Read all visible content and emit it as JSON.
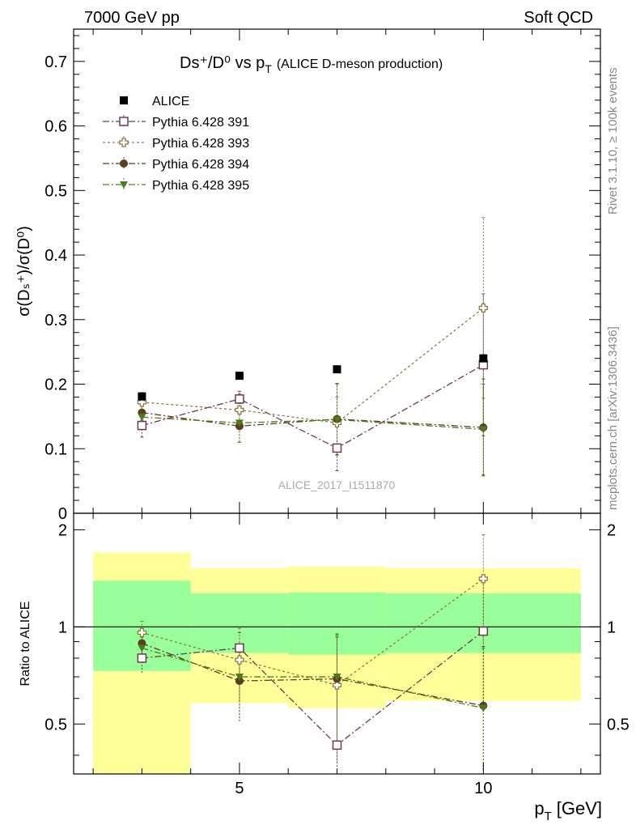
{
  "header": {
    "left": "7000 GeV pp",
    "right": "Soft QCD"
  },
  "side": {
    "rivet": "Rivet 3.1.10, ≥ 100k events",
    "mcplots": "mcplots.cern.ch [arXiv:1306.3436]"
  },
  "chart_data": [
    {
      "type": "scatter",
      "title_main": "Ds⁺/D⁰ vs p",
      "title_sub": "T",
      "title_note": "(ALICE D-meson production)",
      "ylabel": "σ(Dₛ⁺)/σ(D⁰)",
      "watermark": "ALICE_2017_I1511870",
      "xlim": [
        1.6,
        12.4
      ],
      "ylim": [
        0,
        0.75
      ],
      "yticks": [
        0,
        0.1,
        0.2,
        0.3,
        0.4,
        0.5,
        0.6,
        0.7
      ],
      "ytick_labels": [
        "0",
        "0.1",
        "0.2",
        "0.3",
        "0.4",
        "0.5",
        "0.6",
        "0.7"
      ],
      "legend_position": "top-left",
      "x": [
        3,
        5,
        7,
        10
      ],
      "series": [
        {
          "name": "ALICE",
          "color": "#000000",
          "marker": "filled-square",
          "line": "none",
          "values": [
            0.181,
            0.213,
            0.223,
            0.24
          ],
          "err": [
            0.005,
            0.005,
            0.005,
            0.005
          ]
        },
        {
          "name": "Pythia 6.428 391",
          "color": "#6b3a52",
          "marker": "open-square",
          "line": "dashdot",
          "values": [
            0.136,
            0.177,
            0.101,
            0.23
          ],
          "err": [
            0.018,
            0.012,
            0.035,
            0.11
          ]
        },
        {
          "name": "Pythia 6.428 393",
          "color": "#8a7a45",
          "marker": "open-cross",
          "line": "dotted",
          "values": [
            0.172,
            0.16,
            0.14,
            0.318
          ],
          "err": [
            0.015,
            0.025,
            0.04,
            0.14
          ]
        },
        {
          "name": "Pythia 6.428 394",
          "color": "#5a3e22",
          "marker": "filled-circle",
          "line": "dashdot",
          "values": [
            0.156,
            0.135,
            0.146,
            0.133
          ],
          "err": [
            0.012,
            0.025,
            0.055,
            0.075
          ]
        },
        {
          "name": "Pythia 6.428 395",
          "color": "#4f7a1c",
          "marker": "filled-triangle",
          "line": "dashdot",
          "values": [
            0.149,
            0.14,
            0.145,
            0.13
          ],
          "err": [
            0.012,
            0.03,
            0.055,
            0.07
          ]
        }
      ]
    },
    {
      "type": "scatter",
      "ylabel": "Ratio to ALICE",
      "xlabel_main": "p",
      "xlabel_sub": "T",
      "xlabel_unit": "[GeV]",
      "xlim": [
        1.6,
        12.4
      ],
      "ylim": [
        0.35,
        2.25
      ],
      "yticks": [
        0.5,
        1,
        2
      ],
      "ytick_labels": [
        "0.5",
        "1",
        "2"
      ],
      "xticks": [
        5,
        10
      ],
      "xtick_labels": [
        "5",
        "10"
      ],
      "bands": [
        {
          "x0": 2,
          "x1": 4,
          "green": [
            0.73,
            1.39
          ],
          "yellow": [
            0.35,
            1.7
          ]
        },
        {
          "x0": 4,
          "x1": 6,
          "green": [
            0.83,
            1.27
          ],
          "yellow": [
            0.58,
            1.52
          ]
        },
        {
          "x0": 6,
          "x1": 8,
          "green": [
            0.82,
            1.28
          ],
          "yellow": [
            0.56,
            1.54
          ]
        },
        {
          "x0": 8,
          "x1": 12,
          "green": [
            0.83,
            1.27
          ],
          "yellow": [
            0.59,
            1.52
          ]
        }
      ],
      "x": [
        3,
        5,
        7,
        10
      ],
      "series": [
        {
          "name": "Pythia 6.428 391",
          "values": [
            0.8,
            0.86,
            0.43,
            0.97
          ],
          "err": [
            0.08,
            0.1,
            0.5,
            0.4
          ]
        },
        {
          "name": "Pythia 6.428 393",
          "values": [
            0.96,
            0.79,
            0.66,
            1.41
          ],
          "err": [
            0.08,
            0.2,
            0.28,
            0.52
          ]
        },
        {
          "name": "Pythia 6.428 394",
          "values": [
            0.89,
            0.68,
            0.69,
            0.57
          ],
          "err": [
            0.07,
            0.17,
            0.26,
            0.3
          ]
        },
        {
          "name": "Pythia 6.428 395",
          "values": [
            0.86,
            0.7,
            0.7,
            0.56
          ],
          "err": [
            0.07,
            0.18,
            0.25,
            0.3
          ]
        }
      ]
    }
  ]
}
